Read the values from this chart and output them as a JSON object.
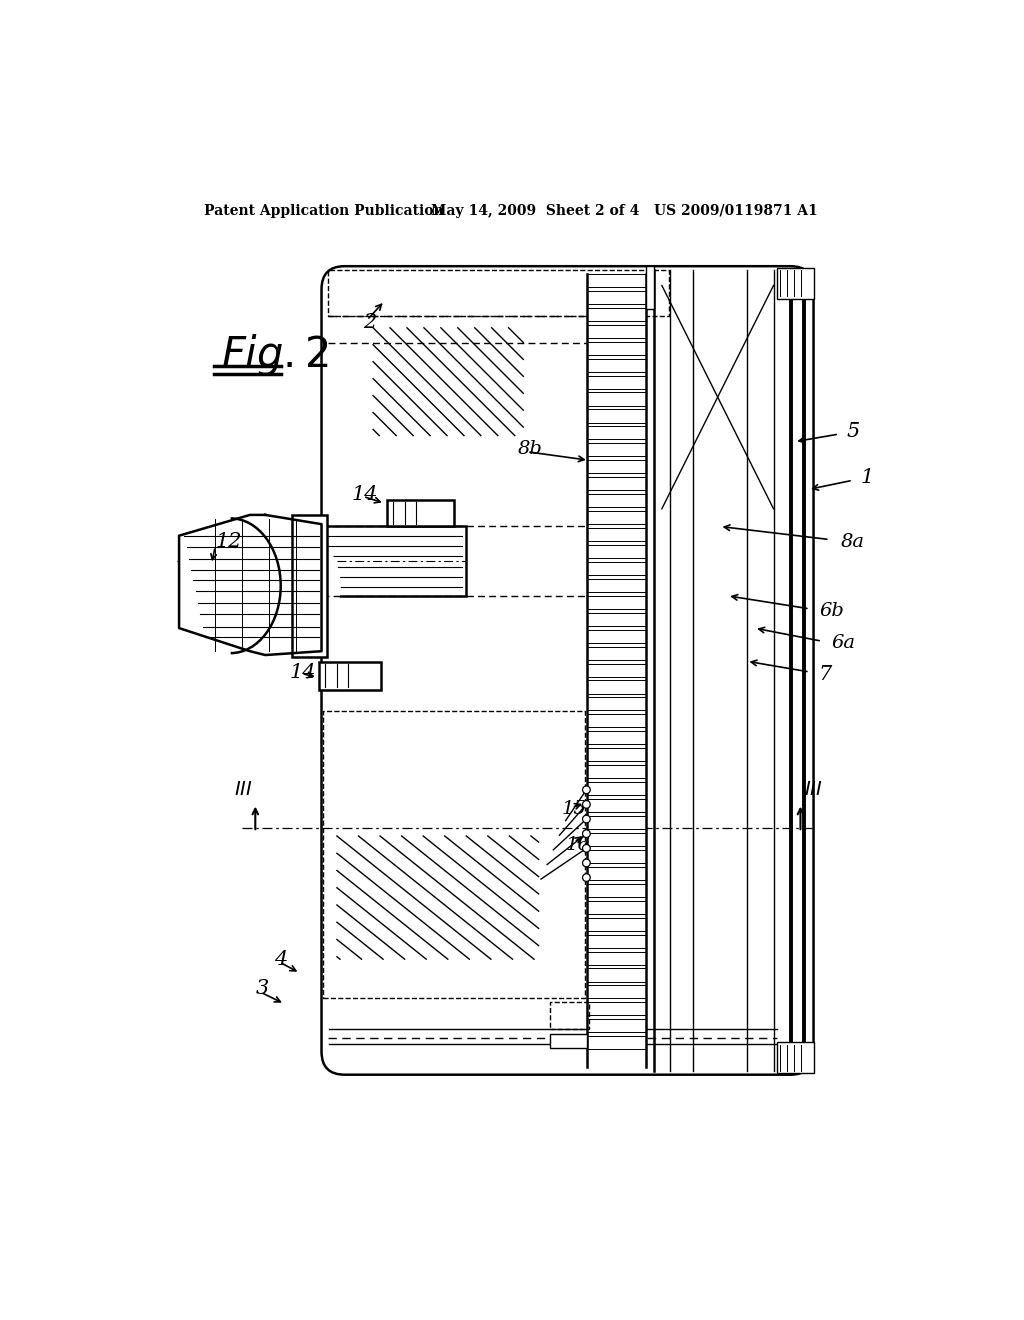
{
  "background_color": "#ffffff",
  "header_text": "Patent Application Publication",
  "header_date": "May 14, 2009  Sheet 2 of 4",
  "header_patent": "US 2009/0119871 A1"
}
